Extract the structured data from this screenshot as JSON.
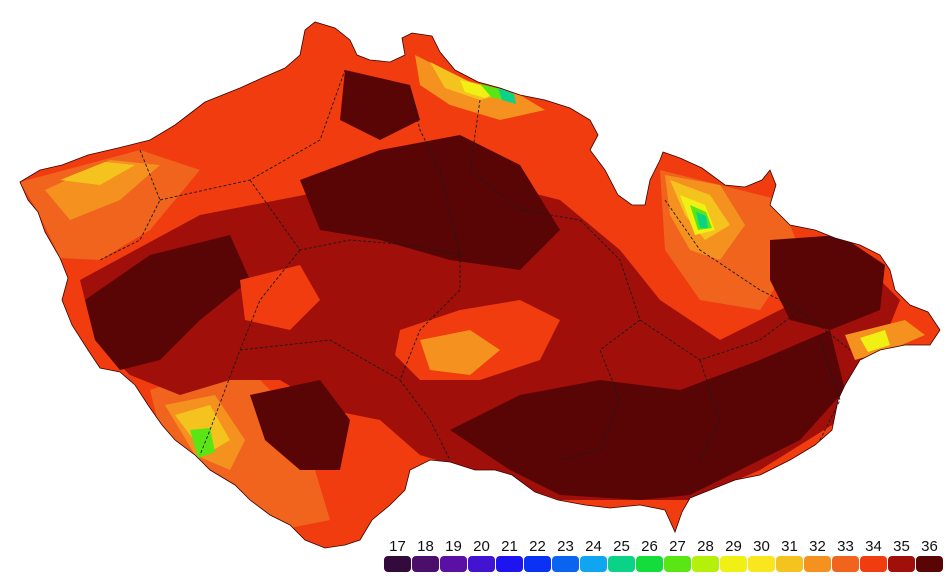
{
  "legend": {
    "items": [
      {
        "value": "17",
        "color": "#330a3c"
      },
      {
        "value": "18",
        "color": "#4b0f6b"
      },
      {
        "value": "19",
        "color": "#5a0fa5"
      },
      {
        "value": "20",
        "color": "#4214d2"
      },
      {
        "value": "21",
        "color": "#1e14f0"
      },
      {
        "value": "22",
        "color": "#0a32f5"
      },
      {
        "value": "23",
        "color": "#0a64f0"
      },
      {
        "value": "24",
        "color": "#0fa5f0"
      },
      {
        "value": "25",
        "color": "#0ad287"
      },
      {
        "value": "26",
        "color": "#14dc3c"
      },
      {
        "value": "27",
        "color": "#5ae614"
      },
      {
        "value": "28",
        "color": "#b4f00a"
      },
      {
        "value": "29",
        "color": "#f0f014"
      },
      {
        "value": "30",
        "color": "#fae61e"
      },
      {
        "value": "31",
        "color": "#f5c31e"
      },
      {
        "value": "32",
        "color": "#f5911e"
      },
      {
        "value": "33",
        "color": "#f0641e"
      },
      {
        "value": "34",
        "color": "#f03c0f"
      },
      {
        "value": "35",
        "color": "#a00f0a"
      },
      {
        "value": "36",
        "color": "#5a0505"
      }
    ]
  },
  "map": {
    "colors": {
      "c36": "#5a0505",
      "c35": "#a00f0a",
      "c34": "#f03c0f",
      "c33": "#f0641e",
      "c32": "#f5911e",
      "c31": "#f5c31e",
      "c29": "#f0f014",
      "c27": "#5ae614",
      "c25": "#0ad287",
      "c24": "#0fa5f0",
      "border": "#1a1a1a"
    }
  }
}
